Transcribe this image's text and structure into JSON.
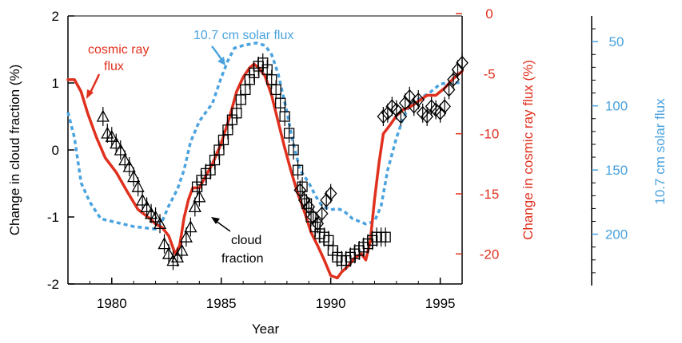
{
  "chart_data": {
    "type": "line",
    "xlabel": "Year",
    "xlim": [
      1978,
      1996
    ],
    "xticks": [
      1980,
      1985,
      1990,
      1995
    ],
    "axes": {
      "cloud": {
        "label": "Change in cloud fraction (%)",
        "lim": [
          -2,
          2
        ],
        "ticks": [
          2,
          1,
          0,
          -1,
          -2
        ],
        "color": "#000000"
      },
      "cosmic": {
        "label": "Change in cosmic ray flux (%)",
        "lim": [
          0,
          -22.5
        ],
        "ticks": [
          0,
          -5,
          -10,
          -15,
          -20
        ],
        "color": "#e0301e"
      },
      "solar": {
        "label": "10.7 cm solar flux",
        "lim": [
          30,
          240
        ],
        "ticks": [
          50,
          100,
          150,
          200
        ],
        "color": "#4aa3df"
      }
    },
    "annotations": {
      "cosmic": [
        "cosmic ray",
        "flux"
      ],
      "solar": "10.7 cm solar flux",
      "cloud": [
        "cloud",
        "fraction"
      ]
    },
    "series": [
      {
        "name": "cosmic ray flux",
        "axis": "cosmic",
        "color": "#e0301e",
        "style": "solid",
        "x": [
          1978.0,
          1978.3,
          1978.6,
          1978.9,
          1979.3,
          1979.7,
          1980.2,
          1980.7,
          1981.2,
          1981.7,
          1982.0,
          1982.3,
          1982.6,
          1982.9,
          1983.1,
          1983.3,
          1983.5,
          1983.7,
          1984.0,
          1984.3,
          1984.6,
          1985.0,
          1985.4,
          1985.7,
          1986.0,
          1986.3,
          1986.5,
          1986.7,
          1987.0,
          1987.3,
          1987.6,
          1987.9,
          1988.2,
          1988.5,
          1988.8,
          1989.1,
          1989.4,
          1989.7,
          1990.0,
          1990.3,
          1990.5,
          1990.8,
          1991.1,
          1991.4,
          1991.6,
          1991.8,
          1992.0,
          1992.2,
          1992.4,
          1992.7,
          1993.0,
          1993.3,
          1993.6,
          1994.0,
          1994.4,
          1994.8,
          1995.2,
          1995.6,
          1996.0
        ],
        "values": [
          -5.5,
          -5.5,
          -6.5,
          -8.3,
          -10.3,
          -12.0,
          -13.2,
          -14.8,
          -16.3,
          -17.0,
          -17.5,
          -17.8,
          -18.5,
          -20.0,
          -19.3,
          -17.0,
          -15.5,
          -14.5,
          -14.5,
          -13.5,
          -12.5,
          -10.8,
          -8.5,
          -6.5,
          -5.3,
          -4.5,
          -4.2,
          -4.5,
          -5.2,
          -6.8,
          -9.0,
          -11.2,
          -13.2,
          -15.0,
          -16.5,
          -18.2,
          -19.3,
          -20.5,
          -21.8,
          -22.0,
          -21.5,
          -21.0,
          -20.3,
          -20.0,
          -20.5,
          -19.0,
          -15.5,
          -12.5,
          -10.0,
          -9.3,
          -8.5,
          -8.0,
          -7.8,
          -7.3,
          -6.8,
          -6.8,
          -6.2,
          -5.4,
          -4.8
        ]
      },
      {
        "name": "10.7 cm solar flux",
        "axis": "solar",
        "color": "#4aa3df",
        "style": "dotted",
        "x": [
          1978.0,
          1978.3,
          1978.6,
          1979.0,
          1979.5,
          1980.0,
          1980.5,
          1981.0,
          1981.5,
          1982.0,
          1982.3,
          1982.6,
          1983.0,
          1983.3,
          1983.6,
          1984.0,
          1984.3,
          1984.6,
          1985.0,
          1985.3,
          1985.6,
          1986.0,
          1986.3,
          1986.6,
          1987.0,
          1987.3,
          1987.6,
          1988.0,
          1988.3,
          1988.6,
          1989.0,
          1989.3,
          1989.6,
          1990.0,
          1990.3,
          1990.6,
          1991.0,
          1991.3,
          1991.6,
          1992.0,
          1992.3,
          1992.6,
          1993.0,
          1993.3,
          1993.6,
          1994.0,
          1994.5,
          1995.0,
          1995.5,
          1996.0
        ],
        "values": [
          105,
          125,
          160,
          175,
          188,
          190,
          192,
          194,
          195,
          196,
          190,
          178,
          165,
          150,
          128,
          112,
          105,
          98,
          78,
          65,
          55,
          53,
          52,
          51,
          53,
          60,
          75,
          105,
          130,
          150,
          160,
          170,
          178,
          181,
          180,
          182,
          188,
          190,
          192,
          190,
          178,
          150,
          125,
          110,
          100,
          95,
          90,
          83,
          82,
          82
        ]
      },
      {
        "name": "cloud fraction",
        "axis": "cloud",
        "color": "#000000",
        "style": "markers",
        "groups": [
          {
            "marker": "triangle",
            "x": [
              1979.6,
              1979.8,
              1980.0,
              1980.2,
              1980.4,
              1980.6,
              1980.8,
              1981.0,
              1981.2,
              1981.4,
              1981.6,
              1981.8,
              1982.0,
              1982.2,
              1982.4,
              1982.6,
              1982.8,
              1983.0,
              1983.2,
              1983.4,
              1983.6,
              1983.8,
              1984.0
            ],
            "values": [
              0.5,
              0.25,
              0.2,
              0.1,
              0.0,
              -0.15,
              -0.25,
              -0.4,
              -0.55,
              -0.75,
              -0.85,
              -0.95,
              -1.0,
              -1.1,
              -1.4,
              -1.55,
              -1.65,
              -1.6,
              -1.5,
              -1.3,
              -1.15,
              -0.85,
              -0.7
            ]
          },
          {
            "marker": "square",
            "x": [
              1983.9,
              1984.1,
              1984.3,
              1984.5,
              1984.7,
              1984.9,
              1985.1,
              1985.3,
              1985.5,
              1985.7,
              1985.9,
              1986.1,
              1986.3,
              1986.5,
              1986.7,
              1986.9,
              1987.1,
              1987.3,
              1987.5,
              1987.7,
              1987.9,
              1988.1,
              1988.3,
              1988.5,
              1988.7,
              1988.9,
              1989.1,
              1989.3,
              1989.5,
              1989.7,
              1989.9,
              1990.1,
              1990.3,
              1990.5,
              1990.7,
              1990.9,
              1991.1,
              1991.3,
              1991.5,
              1991.7,
              1991.9,
              1992.1,
              1992.3,
              1992.5
            ],
            "values": [
              -0.55,
              -0.45,
              -0.35,
              -0.3,
              -0.15,
              0.0,
              0.15,
              0.3,
              0.45,
              0.55,
              0.75,
              0.9,
              1.05,
              1.15,
              1.25,
              1.3,
              1.2,
              1.05,
              0.9,
              0.7,
              0.5,
              0.25,
              0.0,
              -0.3,
              -0.55,
              -0.8,
              -1.0,
              -1.15,
              -1.25,
              -1.3,
              -1.35,
              -1.5,
              -1.6,
              -1.65,
              -1.65,
              -1.6,
              -1.55,
              -1.5,
              -1.45,
              -1.4,
              -1.35,
              -1.3,
              -1.3,
              -1.3
            ]
          },
          {
            "marker": "diamond",
            "x": [
              1988.6,
              1988.8,
              1989.0,
              1989.2,
              1989.4,
              1989.6,
              1989.8,
              1990.0,
              1992.4,
              1992.6,
              1992.8,
              1993.0,
              1993.2,
              1993.4,
              1993.6,
              1993.8,
              1994.0,
              1994.2,
              1994.4,
              1994.6,
              1994.8,
              1995.0,
              1995.2,
              1995.4,
              1995.6,
              1995.8,
              1996.0
            ],
            "values": [
              -0.6,
              -0.75,
              -0.85,
              -1.0,
              -1.1,
              -0.95,
              -0.75,
              -0.65,
              0.5,
              0.55,
              0.65,
              0.6,
              0.5,
              0.7,
              0.8,
              0.65,
              0.75,
              0.55,
              0.5,
              0.65,
              0.6,
              0.55,
              0.65,
              0.9,
              1.05,
              1.2,
              1.3
            ]
          }
        ]
      }
    ]
  }
}
